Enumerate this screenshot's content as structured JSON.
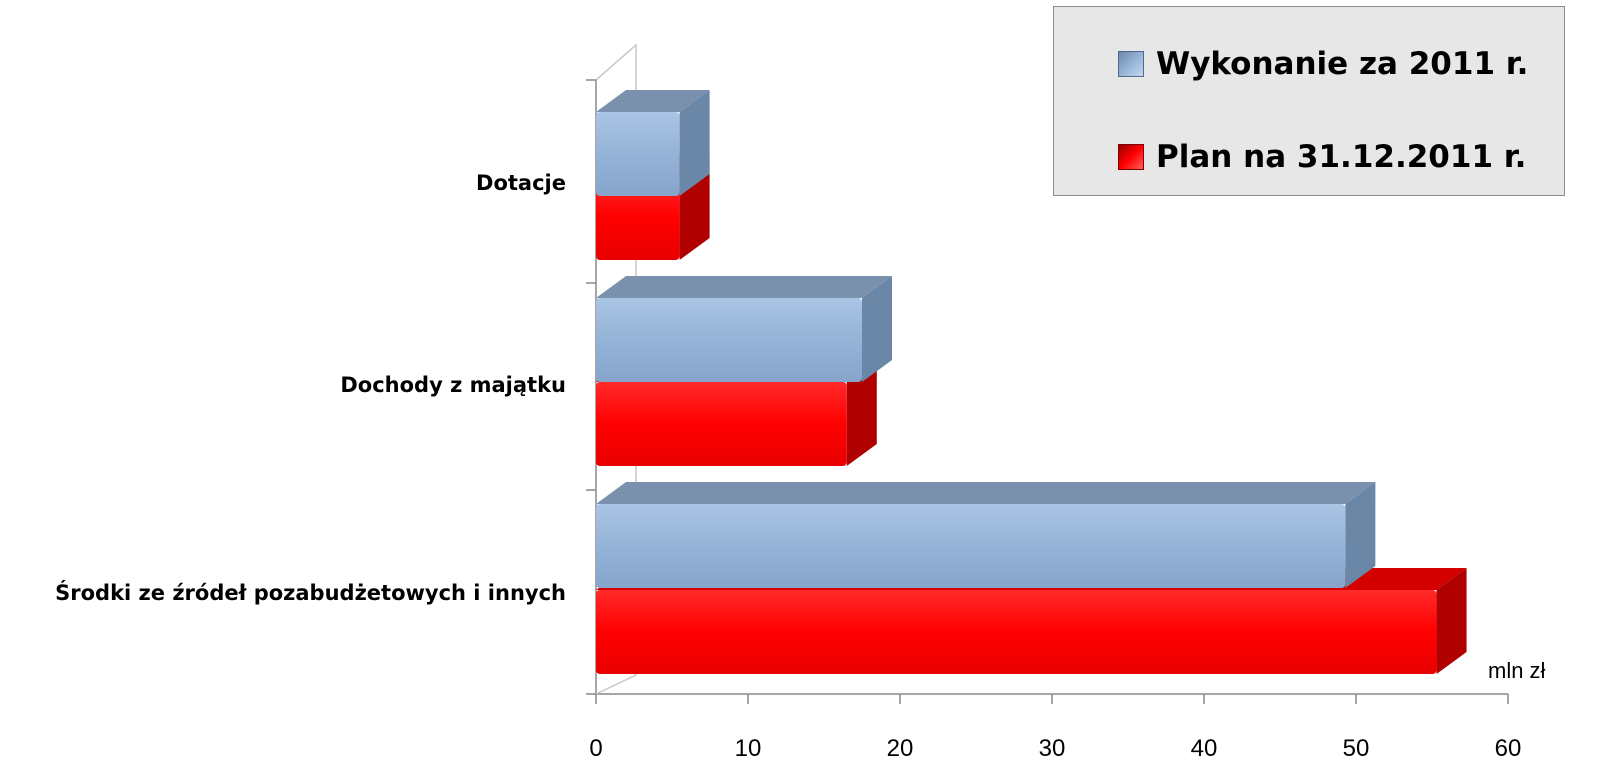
{
  "chart_data": {
    "type": "bar",
    "orientation": "horizontal",
    "style": "3d-clustered",
    "categories": [
      "Dotacje",
      "Dochody z majątku",
      "Środki ze źródeł pozabudżetowych i innych"
    ],
    "series": [
      {
        "name": "Wykonanie za 2011 r.",
        "values": [
          5.5,
          17.5,
          49.3
        ],
        "color": "#95b3d7",
        "side_color": "#6a87a8",
        "top_color": "#7a91ad"
      },
      {
        "name": "Plan na 31.12.2011 r.",
        "values": [
          5.5,
          16.5,
          55.3
        ],
        "color": "#ff0000",
        "side_color": "#b00000",
        "top_color": "#d40000"
      }
    ],
    "xlim": [
      0,
      60
    ],
    "x_ticks": [
      "0",
      "10",
      "20",
      "30",
      "40",
      "50",
      "60"
    ],
    "x_unit": "mln zł",
    "legend_position": "top-right",
    "grid": false
  }
}
